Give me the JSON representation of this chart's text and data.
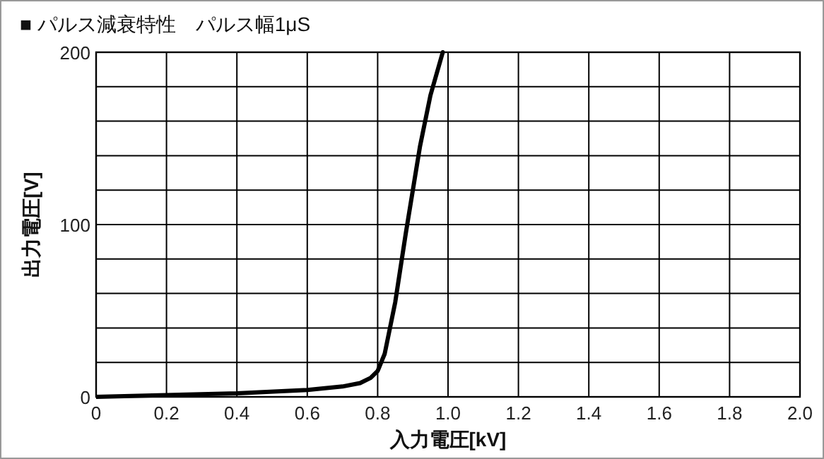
{
  "chart_data": {
    "type": "line",
    "title": "■ パルス減衰特性　パルス幅1μS",
    "xlabel": "入力電圧[kV]",
    "ylabel": "出力電圧[V]",
    "series": [
      {
        "color": "#000000",
        "x": [
          0,
          0.2,
          0.4,
          0.6,
          0.7,
          0.75,
          0.78,
          0.8,
          0.82,
          0.85,
          0.88,
          0.92,
          0.95,
          0.985
        ],
        "values": [
          0,
          1,
          2,
          4,
          6,
          8,
          11,
          15,
          25,
          55,
          95,
          145,
          175,
          200
        ]
      }
    ],
    "xlim": [
      0,
      2.0
    ],
    "ylim": [
      0,
      200
    ],
    "xticks": [
      {
        "value": 0,
        "label": "0"
      },
      {
        "value": 0.2,
        "label": "0.2"
      },
      {
        "value": 0.4,
        "label": "0.4"
      },
      {
        "value": 0.6,
        "label": "0.6"
      },
      {
        "value": 0.8,
        "label": "0.8"
      },
      {
        "value": 1.0,
        "label": "1.0"
      },
      {
        "value": 1.2,
        "label": "1.2"
      },
      {
        "value": 1.4,
        "label": "1.4"
      },
      {
        "value": 1.6,
        "label": "1.6"
      },
      {
        "value": 1.8,
        "label": "1.8"
      },
      {
        "value": 2.0,
        "label": "2.0"
      }
    ],
    "yticks": [
      0,
      {
        "value": 20,
        "label": null
      },
      {
        "value": 40,
        "label": null
      },
      {
        "value": 60,
        "label": null
      },
      {
        "value": 80,
        "label": null
      },
      100,
      {
        "value": 120,
        "label": null
      },
      {
        "value": 140,
        "label": null
      },
      {
        "value": 160,
        "label": null
      },
      {
        "value": 180,
        "label": null
      },
      200
    ],
    "grid": true,
    "marker": "none",
    "line_style": "solid"
  }
}
